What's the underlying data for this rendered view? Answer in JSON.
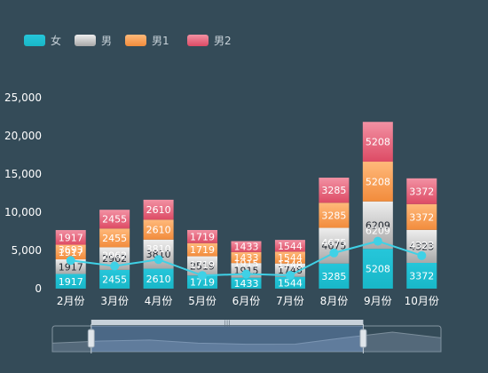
{
  "chart_data": {
    "type": "bar",
    "stacked": true,
    "categories": [
      "2月份",
      "3月份",
      "4月份",
      "5月份",
      "6月份",
      "7月份",
      "8月份",
      "9月份",
      "10月份"
    ],
    "series": [
      {
        "name": "女",
        "type": "bar",
        "values": [
          1917,
          2455,
          2610,
          1719,
          1433,
          1544,
          3285,
          5208,
          3372
        ],
        "colors": [
          "#26c6da",
          "#18b7c8"
        ]
      },
      {
        "name": "男",
        "type": "bar",
        "values": [
          1917,
          2962,
          3810,
          2519,
          1915,
          1748,
          4675,
          6209,
          4323
        ],
        "colors": [
          "#eeeeee",
          "#a8a8a8"
        ]
      },
      {
        "name": "男1",
        "type": "bar",
        "values": [
          1917,
          2455,
          2610,
          1719,
          1433,
          1544,
          3285,
          5208,
          3372
        ],
        "colors": [
          "#ffb97a",
          "#f28c3c"
        ]
      },
      {
        "name": "男2",
        "type": "bar",
        "values": [
          1917,
          2455,
          2610,
          1719,
          1433,
          1544,
          3285,
          5208,
          3372
        ],
        "colors": [
          "#f291a3",
          "#dd4b65"
        ]
      },
      {
        "name": "",
        "type": "line",
        "values": [
          3693,
          2962,
          3810,
          1719,
          1915,
          1748,
          4675,
          6209,
          4323
        ],
        "color": "#3fd1e6"
      }
    ],
    "ylim": [
      0,
      25000
    ],
    "yticks": [
      0,
      5000,
      10000,
      15000,
      20000,
      25000
    ],
    "ytick_labels": [
      "0",
      "5,000",
      "10,000",
      "15,000",
      "20,000",
      "25,000"
    ],
    "grid": false,
    "legend": "top-left",
    "datazoom": {
      "start": 0.1,
      "end": 0.8
    }
  }
}
